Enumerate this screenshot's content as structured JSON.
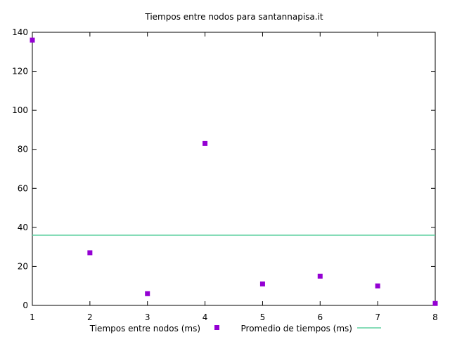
{
  "chart_data": {
    "type": "scatter",
    "title": "Tiempos entre nodos para santannapisa.it",
    "xlabel": "",
    "ylabel": "",
    "xlim": [
      1,
      8
    ],
    "ylim": [
      0,
      140
    ],
    "x_ticks": [
      "1",
      "2",
      "3",
      "4",
      "5",
      "6",
      "7",
      "8"
    ],
    "y_ticks": [
      "0",
      "20",
      "40",
      "60",
      "80",
      "100",
      "120",
      "140"
    ],
    "grid": false,
    "legend_position": "bottom",
    "series": [
      {
        "name": "Tiempos entre nodos (ms)",
        "type": "scatter",
        "color": "#9400d3",
        "marker": "square",
        "x": [
          1,
          2,
          3,
          4,
          5,
          6,
          7,
          8
        ],
        "y": [
          136,
          27,
          6,
          83,
          11,
          15,
          10,
          1
        ]
      },
      {
        "name": "Promedio de tiempos (ms)",
        "type": "line",
        "color": "#5fd0a0",
        "y": 36
      }
    ]
  }
}
